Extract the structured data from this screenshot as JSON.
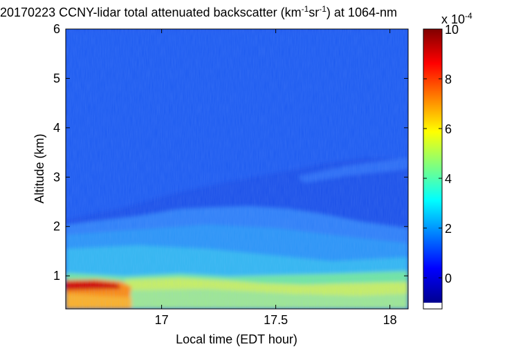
{
  "chart_data": {
    "type": "heatmap",
    "title": {
      "prefix": "20170223 CCNY-lidar total attenuated backscatter (km",
      "exp1": "-1",
      "mid": "sr",
      "exp2": "-1",
      "suffix": ") at 1064-nm"
    },
    "xlabel": "Local time (EDT hour)",
    "ylabel": "Altitude (km)",
    "xlim": [
      16.58,
      18.08
    ],
    "ylim": [
      0.33,
      6.0
    ],
    "xticks": [
      "17",
      "17.5",
      "18"
    ],
    "xtick_values": [
      17,
      17.5,
      18
    ],
    "yticks": [
      "1",
      "2",
      "3",
      "4",
      "5",
      "6"
    ],
    "ytick_values": [
      1,
      2,
      3,
      4,
      5,
      6
    ],
    "colorbar": {
      "range": [
        -1,
        10
      ],
      "ticks": [
        "0",
        "2",
        "4",
        "6",
        "8",
        "10"
      ],
      "tick_values": [
        0,
        2,
        4,
        6,
        8,
        10
      ],
      "multiplier": "x 10",
      "multiplier_exp": "-4",
      "colormap": "jet"
    },
    "layers": [
      {
        "altitude_km": "0.33–0.8",
        "time": "16.58–16.82",
        "value": 8.5
      },
      {
        "altitude_km": "0.33–0.9",
        "time": "16.82–18.08",
        "value": 4.5
      },
      {
        "altitude_km": "0.9–1.8",
        "time": "16.58–18.08",
        "value": 2.8
      },
      {
        "altitude_km": "1.8–2.4",
        "time": "16.58–18.08",
        "value": 2.0
      },
      {
        "altitude_km": "2.4–6.0",
        "time": "16.58–18.08",
        "value": 1.2
      }
    ]
  },
  "colors": {
    "axis": "#000000",
    "background": "#ffffff"
  }
}
